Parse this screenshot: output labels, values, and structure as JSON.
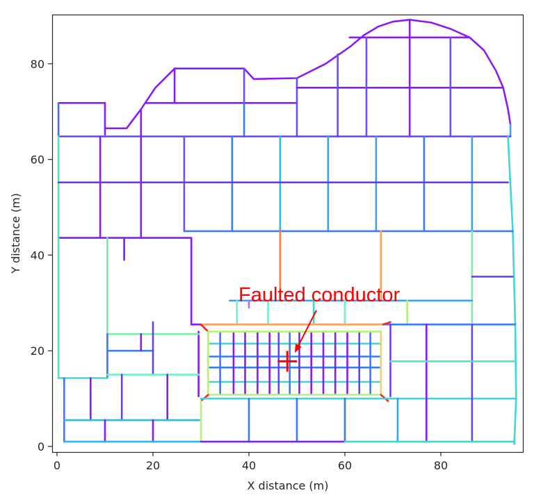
{
  "chart_data": {
    "type": "line",
    "title": "",
    "xlabel": "X distance (m)",
    "ylabel": "Y distance (m)",
    "xlim": [
      -1,
      97
    ],
    "ylim": [
      -1.2,
      90
    ],
    "xticks": [
      0,
      20,
      40,
      60,
      80
    ],
    "yticks": [
      0,
      20,
      40,
      60,
      80
    ],
    "grid": false,
    "legend": "none",
    "colormap": "rainbow (conductor potential / current)",
    "annotation": {
      "text": "Faulted conductor",
      "text_xy": [
        48.5,
        30.5
      ],
      "arrow_from": [
        53,
        27
      ],
      "arrow_to": [
        49.5,
        19.5
      ],
      "marker": "red cross",
      "marker_xy": [
        48,
        17.8
      ],
      "color": "#ff0000"
    },
    "segments": [
      {
        "p": [
          [
            0.3,
            71.8
          ],
          [
            10,
            71.8
          ]
        ],
        "c": "#8a1cf2"
      },
      {
        "p": [
          [
            0.3,
            64.8
          ],
          [
            0.3,
            71.8
          ]
        ],
        "c": "#4a6cf7"
      },
      {
        "p": [
          [
            10,
            65.2
          ],
          [
            10,
            71.8
          ]
        ],
        "c": "#8a1cf2"
      },
      {
        "p": [
          [
            10,
            66.5
          ],
          [
            14.5,
            66.5
          ],
          [
            17.5,
            70.5
          ],
          [
            20.5,
            75
          ],
          [
            24.5,
            79
          ],
          [
            39,
            79
          ],
          [
            41,
            76.8
          ],
          [
            50,
            77
          ],
          [
            56,
            80
          ],
          [
            61,
            83.5
          ],
          [
            64,
            86
          ],
          [
            67,
            87.8
          ],
          [
            70,
            88.8
          ],
          [
            73.5,
            89.2
          ],
          [
            78,
            88.6
          ],
          [
            82,
            87.3
          ],
          [
            86,
            85.5
          ],
          [
            89,
            82.8
          ],
          [
            91.5,
            78.5
          ],
          [
            93,
            75
          ],
          [
            94,
            70.5
          ],
          [
            94.5,
            67.3
          ]
        ],
        "c": "#8a1cf2"
      },
      {
        "p": [
          [
            94.5,
            67.3
          ],
          [
            94.5,
            64.8
          ]
        ],
        "c": "#3ba0f0"
      },
      {
        "p": [
          [
            24.5,
            79
          ],
          [
            24.5,
            71.8
          ]
        ],
        "c": "#8a1cf2"
      },
      {
        "p": [
          [
            39,
            79
          ],
          [
            39,
            71.8
          ]
        ],
        "c": "#6a50f5"
      },
      {
        "p": [
          [
            18.5,
            71.8
          ],
          [
            50,
            71.8
          ]
        ],
        "c": "#8a1cf2"
      },
      {
        "p": [
          [
            17.5,
            70.5
          ],
          [
            17.5,
            64.8
          ]
        ],
        "c": "#8a1cf2"
      },
      {
        "p": [
          [
            39,
            71.8
          ],
          [
            39,
            64.8
          ]
        ],
        "c": "#3b7cf5"
      },
      {
        "p": [
          [
            50,
            77
          ],
          [
            50,
            64.8
          ]
        ],
        "c": "#6a50f5"
      },
      {
        "p": [
          [
            50,
            75
          ],
          [
            93,
            75
          ]
        ],
        "c": "#8a1cf2"
      },
      {
        "p": [
          [
            58.5,
            82
          ],
          [
            58.5,
            64.8
          ]
        ],
        "c": "#6a50f5"
      },
      {
        "p": [
          [
            61,
            85.5
          ],
          [
            86,
            85.5
          ]
        ],
        "c": "#8a1cf2"
      },
      {
        "p": [
          [
            64.5,
            85.5
          ],
          [
            64.5,
            64.8
          ]
        ],
        "c": "#6a50f5"
      },
      {
        "p": [
          [
            73.5,
            89.2
          ],
          [
            73.5,
            64.8
          ]
        ],
        "c": "#8a1cf2"
      },
      {
        "p": [
          [
            82,
            85.5
          ],
          [
            82,
            64.8
          ]
        ],
        "c": "#6a50f5"
      },
      {
        "p": [
          [
            0.3,
            64.8
          ],
          [
            94.5,
            64.8
          ]
        ],
        "c": "#6a40f5"
      },
      {
        "p": [
          [
            0.3,
            64.8
          ],
          [
            0.3,
            43.6
          ]
        ],
        "c": "#4ee8c0"
      },
      {
        "p": [
          [
            9,
            64.8
          ],
          [
            9,
            43.6
          ]
        ],
        "c": "#8a1cf2"
      },
      {
        "p": [
          [
            17.5,
            64.8
          ],
          [
            17.5,
            43.6
          ]
        ],
        "c": "#8a1cf2"
      },
      {
        "p": [
          [
            26.5,
            64.8
          ],
          [
            26.5,
            45
          ]
        ],
        "c": "#6a50f5"
      },
      {
        "p": [
          [
            36.5,
            64.8
          ],
          [
            36.5,
            45
          ]
        ],
        "c": "#3b7cf5"
      },
      {
        "p": [
          [
            46.5,
            64.8
          ],
          [
            46.5,
            45
          ]
        ],
        "c": "#2ab8ec"
      },
      {
        "p": [
          [
            56.5,
            64.8
          ],
          [
            56.5,
            45
          ]
        ],
        "c": "#3ba0f0"
      },
      {
        "p": [
          [
            66.5,
            64.8
          ],
          [
            66.5,
            45
          ]
        ],
        "c": "#3ba0f0"
      },
      {
        "p": [
          [
            76.5,
            64.8
          ],
          [
            76.5,
            45
          ]
        ],
        "c": "#3b7cf5"
      },
      {
        "p": [
          [
            86.5,
            64.8
          ],
          [
            86.5,
            45
          ]
        ],
        "c": "#3ba0f0"
      },
      {
        "p": [
          [
            0.3,
            55.2
          ],
          [
            94,
            55.2
          ]
        ],
        "c": "#7a30f5"
      },
      {
        "p": [
          [
            94,
            64.8
          ],
          [
            95,
            45
          ],
          [
            95.5,
            25.5
          ],
          [
            95.7,
            10
          ],
          [
            95.3,
            0.5
          ]
        ],
        "c": "#3ed6d8"
      },
      {
        "p": [
          [
            26.5,
            45
          ],
          [
            95,
            45
          ]
        ],
        "c": "#3b7cf5"
      },
      {
        "p": [
          [
            0.3,
            43.6
          ],
          [
            28,
            43.6
          ],
          [
            28,
            25.5
          ],
          [
            30,
            25.5
          ]
        ],
        "c": "#8a1cf2"
      },
      {
        "p": [
          [
            0.3,
            43.6
          ],
          [
            0.3,
            14.3
          ]
        ],
        "c": "#4ee8c0"
      },
      {
        "p": [
          [
            10.5,
            43.6
          ],
          [
            10.5,
            14.3
          ]
        ],
        "c": "#6ef0a8"
      },
      {
        "p": [
          [
            14,
            43.6
          ],
          [
            14,
            39
          ]
        ],
        "c": "#8a1cf2"
      },
      {
        "p": [
          [
            46.5,
            45
          ],
          [
            46.5,
            30.5
          ]
        ],
        "c": "#ff7a40"
      },
      {
        "p": [
          [
            67.5,
            45
          ],
          [
            67.5,
            30.5
          ]
        ],
        "c": "#ffa060"
      },
      {
        "p": [
          [
            86.5,
            45
          ],
          [
            86.5,
            25.5
          ]
        ],
        "c": "#7ef0a0"
      },
      {
        "p": [
          [
            86.5,
            35.5
          ],
          [
            95,
            35.5
          ]
        ],
        "c": "#6a40f5"
      },
      {
        "p": [
          [
            36,
            30.5
          ],
          [
            86.5,
            30.5
          ]
        ],
        "c": "#3ba0f0"
      },
      {
        "p": [
          [
            37.5,
            30.5
          ],
          [
            37.5,
            25.5
          ]
        ],
        "c": "#6ef0c8"
      },
      {
        "p": [
          [
            44,
            30.5
          ],
          [
            44,
            25.5
          ]
        ],
        "c": "#6ef0c8"
      },
      {
        "p": [
          [
            53.5,
            30.5
          ],
          [
            53.5,
            25.5
          ]
        ],
        "c": "#3ed6d8"
      },
      {
        "p": [
          [
            60,
            30.5
          ],
          [
            60,
            25.5
          ]
        ],
        "c": "#6ef0c8"
      },
      {
        "p": [
          [
            73,
            30.5
          ],
          [
            73,
            25.5
          ]
        ],
        "c": "#b8f080"
      },
      {
        "p": [
          [
            40,
            30.5
          ],
          [
            40,
            29
          ]
        ],
        "c": "#b070f8"
      },
      {
        "p": [
          [
            30,
            25.5
          ],
          [
            68,
            25.5
          ]
        ],
        "c": "#ffa060"
      },
      {
        "p": [
          [
            68,
            25.5
          ],
          [
            95.5,
            25.5
          ]
        ],
        "c": "#3b7cf5"
      },
      {
        "p": [
          [
            30,
            25.5
          ],
          [
            31.5,
            24
          ]
        ],
        "c": "#ff2020"
      },
      {
        "p": [
          [
            68,
            25.5
          ],
          [
            69.5,
            26
          ]
        ],
        "c": "#ff2020"
      },
      {
        "p": [
          [
            31.5,
            24
          ],
          [
            67.5,
            24
          ]
        ],
        "c": "#b8f080"
      },
      {
        "p": [
          [
            31.5,
            10.8
          ],
          [
            67.5,
            10.8
          ]
        ],
        "c": "#b8f080"
      },
      {
        "p": [
          [
            31.5,
            24
          ],
          [
            31.5,
            10.8
          ]
        ],
        "c": "#b8f080"
      },
      {
        "p": [
          [
            67.5,
            24
          ],
          [
            67.5,
            10.8
          ]
        ],
        "c": "#e8d080"
      },
      {
        "p": [
          [
            30,
            9.5
          ],
          [
            31.5,
            10.8
          ]
        ],
        "c": "#ff2020"
      },
      {
        "p": [
          [
            67.5,
            10.8
          ],
          [
            69,
            9.5
          ]
        ],
        "c": "#ff2020"
      },
      {
        "p": [
          [
            69.5,
            25.5
          ],
          [
            69.5,
            10.5
          ]
        ],
        "c": "#6a40f5"
      },
      {
        "p": [
          [
            29.5,
            24
          ],
          [
            29.5,
            10.5
          ]
        ],
        "c": "#8a1cf2"
      },
      {
        "p": [
          [
            10.5,
            23.5
          ],
          [
            29.5,
            23.5
          ]
        ],
        "c": "#6ef0a8"
      },
      {
        "p": [
          [
            10.5,
            23.5
          ],
          [
            10.5,
            14.3
          ]
        ],
        "c": "#3b7cf5"
      },
      {
        "p": [
          [
            10.5,
            20
          ],
          [
            20,
            20
          ]
        ],
        "c": "#3b7cf5"
      },
      {
        "p": [
          [
            17.5,
            23.5
          ],
          [
            17.5,
            20
          ]
        ],
        "c": "#8a1cf2"
      },
      {
        "p": [
          [
            20,
            26
          ],
          [
            20,
            15
          ]
        ],
        "c": "#6a40f5"
      },
      {
        "p": [
          [
            10.5,
            15
          ],
          [
            29.5,
            15
          ]
        ],
        "c": "#6ef0c8"
      },
      {
        "p": [
          [
            0.3,
            14.3
          ],
          [
            10.5,
            14.3
          ]
        ],
        "c": "#3ed6d8"
      },
      {
        "p": [
          [
            1.5,
            14.3
          ],
          [
            1.5,
            1
          ]
        ],
        "c": "#3b7cf5"
      },
      {
        "p": [
          [
            7,
            14.3
          ],
          [
            7,
            5.5
          ]
        ],
        "c": "#8a1cf2"
      },
      {
        "p": [
          [
            13.5,
            15
          ],
          [
            13.5,
            5.5
          ]
        ],
        "c": "#6a40f5"
      },
      {
        "p": [
          [
            23,
            15
          ],
          [
            23,
            5.5
          ]
        ],
        "c": "#8a1cf2"
      },
      {
        "p": [
          [
            1.5,
            5.5
          ],
          [
            30,
            5.5
          ]
        ],
        "c": "#2ab8ec"
      },
      {
        "p": [
          [
            10,
            5.5
          ],
          [
            10,
            1
          ]
        ],
        "c": "#8a1cf2"
      },
      {
        "p": [
          [
            20,
            5.5
          ],
          [
            20,
            1
          ]
        ],
        "c": "#8a1cf2"
      },
      {
        "p": [
          [
            30,
            9.5
          ],
          [
            30,
            1
          ]
        ],
        "c": "#b8f080"
      },
      {
        "p": [
          [
            30,
            10
          ],
          [
            95.7,
            10
          ]
        ],
        "c": "#3ed6d8"
      },
      {
        "p": [
          [
            40,
            10
          ],
          [
            40,
            1
          ]
        ],
        "c": "#3b7cf5"
      },
      {
        "p": [
          [
            50,
            10
          ],
          [
            50,
            1
          ]
        ],
        "c": "#3b7cf5"
      },
      {
        "p": [
          [
            60,
            10
          ],
          [
            60,
            1
          ]
        ],
        "c": "#3b7cf5"
      },
      {
        "p": [
          [
            71,
            10
          ],
          [
            71,
            1
          ]
        ],
        "c": "#3ba0f0"
      },
      {
        "p": [
          [
            77,
            25.5
          ],
          [
            77,
            1
          ]
        ],
        "c": "#8a1cf2"
      },
      {
        "p": [
          [
            86.5,
            25.5
          ],
          [
            86.5,
            1
          ]
        ],
        "c": "#6a40f5"
      },
      {
        "p": [
          [
            69.5,
            17.8
          ],
          [
            95.5,
            17.8
          ]
        ],
        "c": "#4ee8c0"
      },
      {
        "p": [
          [
            1.5,
            1
          ],
          [
            30,
            1
          ]
        ],
        "c": "#2ab8ec"
      },
      {
        "p": [
          [
            30,
            1
          ],
          [
            60,
            1
          ]
        ],
        "c": "#8a1cf2"
      },
      {
        "p": [
          [
            60,
            1
          ],
          [
            95.3,
            1
          ]
        ],
        "c": "#3ed6d8"
      }
    ],
    "grid_mesh": {
      "x_range": [
        31.5,
        67.5
      ],
      "y_range": [
        10.8,
        24
      ],
      "vertical_x": [
        34,
        36.8,
        39.2,
        41.8,
        44.3,
        46.2,
        48.5,
        50.5,
        53,
        55.5,
        58,
        60.5,
        63,
        65.3
      ],
      "vertical_colors": [
        "#3b7cf5",
        "#8a1cf2",
        "#8a1cf2",
        "#8a1cf2",
        "#8a1cf2",
        "#6a40f5",
        "#3b7cf5",
        "#8a1cf2",
        "#8a1cf2",
        "#8a1cf2",
        "#8a1cf2",
        "#8a1cf2",
        "#6a40f5",
        "#3b7cf5"
      ],
      "horizontal_y": [
        21.5,
        18.8,
        16.5,
        13.5
      ],
      "horizontal_colors": [
        "#3ed6d8",
        "#3b7cf5",
        "#3b7cf5",
        "#3ed6d8"
      ]
    }
  }
}
